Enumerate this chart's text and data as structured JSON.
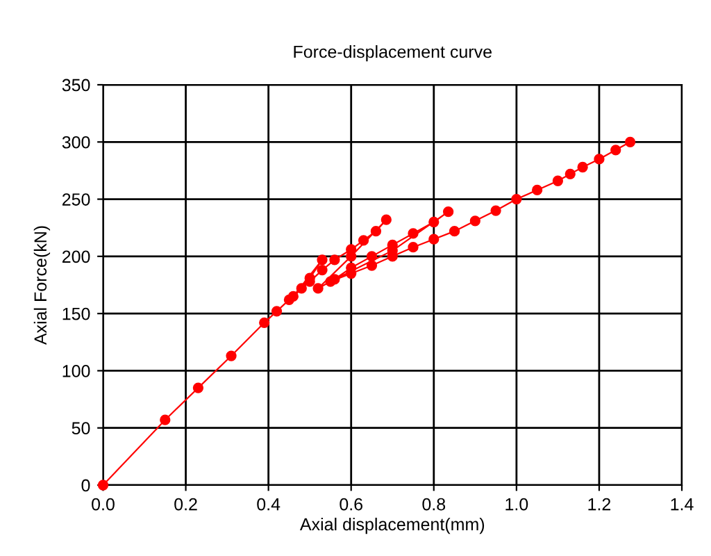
{
  "chart_data": {
    "type": "line",
    "title": "Force-displacement curve",
    "xlabel": "Axial displacement(mm)",
    "ylabel": "Axial Force(kN)",
    "xlim": [
      0,
      1.4
    ],
    "xticks": [
      {
        "value": 0,
        "label": "0.0"
      },
      0.2,
      0.4,
      0.6,
      0.8,
      {
        "value": 1,
        "label": "1.0"
      },
      1.2,
      1.4
    ],
    "ylim": [
      0,
      350
    ],
    "yticks": [
      0,
      50,
      100,
      150,
      200,
      250,
      300,
      350
    ],
    "grid": true,
    "marker": "circle",
    "line_style": "solid",
    "series": [
      {
        "color": "#ff0000",
        "x": [
          0,
          0.15,
          0.23,
          0.31,
          0.39,
          0.42,
          0.45,
          0.48,
          0.5,
          0.53,
          0.46,
          0.5,
          0.53,
          0.56,
          0.6,
          0.63,
          0.66,
          0.685,
          0.6,
          0.52,
          0.56,
          0.6,
          0.65,
          0.7,
          0.75,
          0.8,
          0.835,
          0.7,
          0.55,
          0.6,
          0.65,
          0.7,
          0.75,
          0.8,
          0.85,
          0.9,
          0.95,
          1.0,
          1.05,
          1.1,
          1.13,
          1.16,
          1.2,
          1.24,
          1.275
        ],
        "values": [
          0,
          57,
          85,
          113,
          142,
          152,
          162,
          172,
          181,
          197,
          165,
          178,
          188,
          197,
          206,
          214,
          222,
          232,
          200,
          172,
          180,
          190,
          200,
          210,
          220,
          230,
          239,
          205,
          178,
          185,
          192,
          200,
          208,
          215,
          222,
          231,
          240,
          250,
          258,
          266,
          272,
          278,
          285,
          293,
          300
        ]
      }
    ]
  }
}
